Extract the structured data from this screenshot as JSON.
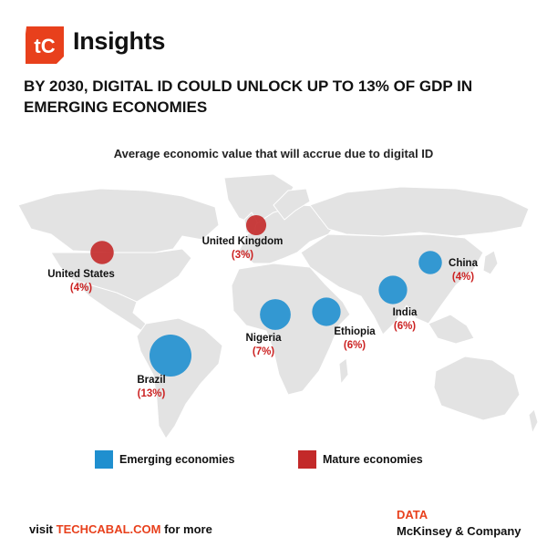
{
  "brand": {
    "logo_text": "tC",
    "name": "Insights"
  },
  "headline": "BY 2030, DIGITAL ID COULD UNLOCK UP TO 13% OF GDP IN EMERGING ECONOMIES",
  "subtitle": "Average economic value that will accrue due to digital ID",
  "colors": {
    "emerging": "#1f8fcf",
    "mature": "#c32929",
    "land": "#e3e3e3",
    "accent": "#e8401c"
  },
  "chart_data": {
    "type": "bubble-map",
    "points": [
      {
        "country": "United States",
        "value": 4,
        "value_label": "(4%)",
        "group": "Mature economies"
      },
      {
        "country": "United Kingdom",
        "value": 3,
        "value_label": "(3%)",
        "group": "Mature economies"
      },
      {
        "country": "Brazil",
        "value": 13,
        "value_label": "(13%)",
        "group": "Emerging economies"
      },
      {
        "country": "Nigeria",
        "value": 7,
        "value_label": "(7%)",
        "group": "Emerging economies"
      },
      {
        "country": "Ethiopia",
        "value": 6,
        "value_label": "(6%)",
        "group": "Emerging economies"
      },
      {
        "country": "India",
        "value": 6,
        "value_label": "(6%)",
        "group": "Emerging economies"
      },
      {
        "country": "China",
        "value": 4,
        "value_label": "(4%)",
        "group": "Emerging economies"
      }
    ]
  },
  "legend": [
    {
      "label": "Emerging economies",
      "color": "#1f8fcf"
    },
    {
      "label": "Mature economies",
      "color": "#c32929"
    }
  ],
  "footer": {
    "visit_prefix": "visit",
    "visit_link": "TECHCABAL.COM",
    "visit_suffix": "for more",
    "data_title": "DATA",
    "data_source": "McKinsey & Company"
  }
}
